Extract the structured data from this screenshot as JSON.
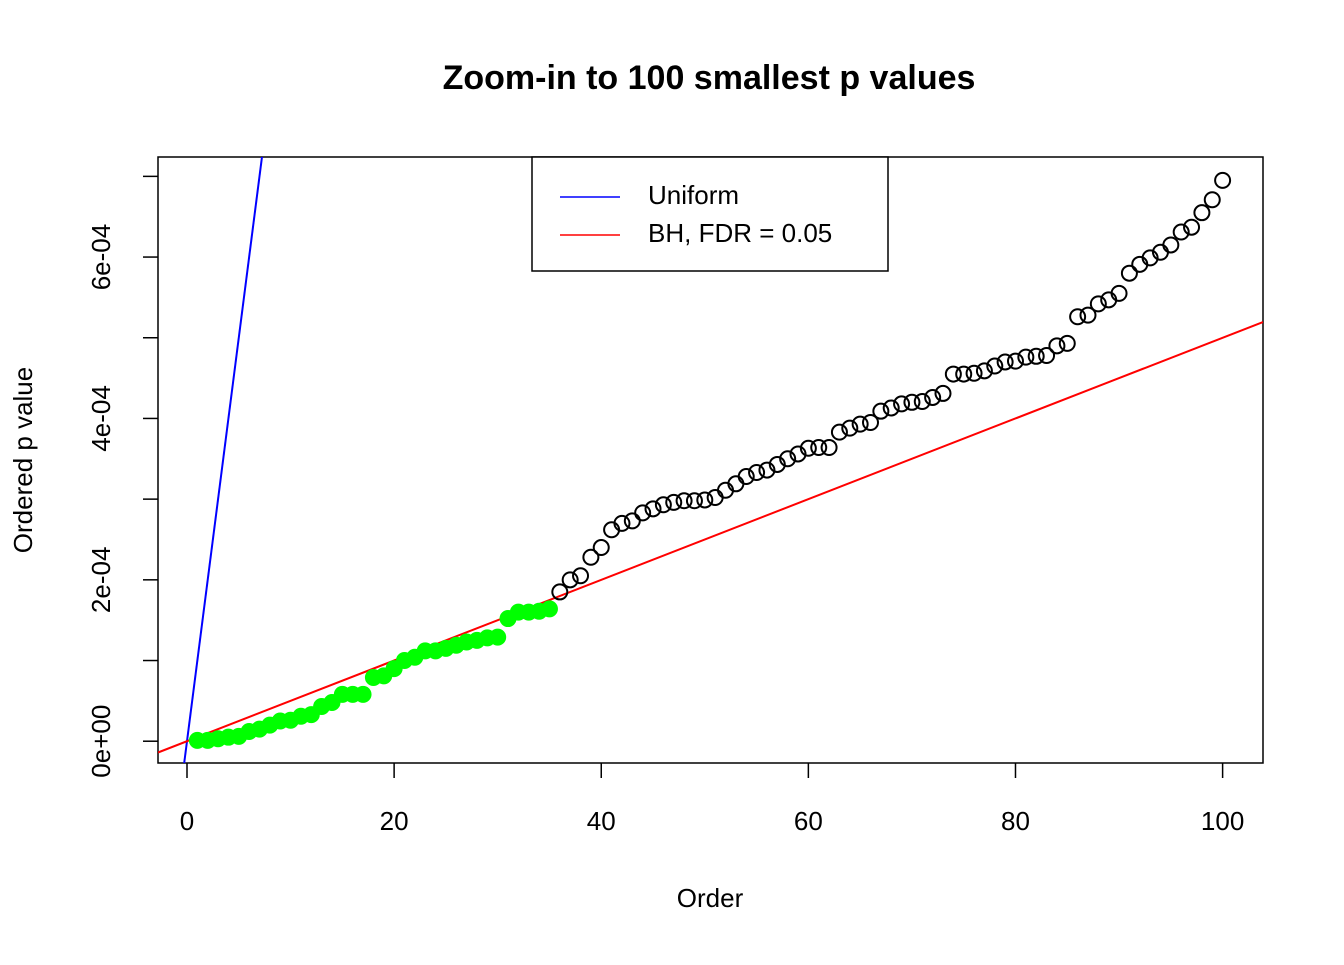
{
  "chart_data": {
    "type": "scatter",
    "title": "Zoom-in to 100 smallest p values",
    "xlabel": "Order",
    "ylabel": "Ordered p value",
    "xlim": [
      -2.8,
      103.9
    ],
    "ylim": [
      -2.7e-05,
      0.000724
    ],
    "xticks": [
      0,
      20,
      40,
      60,
      80,
      100
    ],
    "yticks": [
      {
        "value": 0,
        "label": "0e+00"
      },
      {
        "value": 0.0002,
        "label": "2e-04"
      },
      {
        "value": 0.0004,
        "label": "4e-04"
      },
      {
        "value": 0.0006,
        "label": "6e-04"
      }
    ],
    "yticks_minor": [
      0.0001,
      0.0003,
      0.0005,
      0.0007
    ],
    "lines": [
      {
        "name": "Uniform",
        "color": "#0000ff",
        "slope": 0.0001
      },
      {
        "name": "BH, FDR = 0.05",
        "color": "#ff0000",
        "slope": 5e-06
      }
    ],
    "series": [
      {
        "color": "#00ff00",
        "filled": true,
        "x": [
          1,
          2,
          3,
          4,
          5,
          6,
          7,
          8,
          9,
          10,
          11,
          12,
          13,
          14,
          15,
          16,
          17,
          18,
          19,
          20,
          21,
          22,
          23,
          24,
          25,
          26,
          27,
          28,
          29,
          30,
          31,
          32,
          33,
          34,
          35
        ],
        "values": [
          1e-06,
          1e-06,
          3e-06,
          5e-06,
          6e-06,
          1.2e-05,
          1.5e-05,
          2e-05,
          2.5e-05,
          2.6e-05,
          3.1e-05,
          3.3e-05,
          4.3e-05,
          4.8e-05,
          5.8e-05,
          5.8e-05,
          5.8e-05,
          7.9e-05,
          8.1e-05,
          9e-05,
          0.0001,
          0.000104,
          0.000112,
          0.000112,
          0.000115,
          0.000119,
          0.000123,
          0.000125,
          0.000128,
          0.000129,
          0.000152,
          0.00016,
          0.00016,
          0.000161,
          0.000164
        ]
      },
      {
        "color": "#000000",
        "filled": false,
        "x": [
          36,
          37,
          38,
          39,
          40,
          41,
          42,
          43,
          44,
          45,
          46,
          47,
          48,
          49,
          50,
          51,
          52,
          53,
          54,
          55,
          56,
          57,
          58,
          59,
          60,
          61,
          62,
          63,
          64,
          65,
          66,
          67,
          68,
          69,
          70,
          71,
          72,
          73,
          74,
          75,
          76,
          77,
          78,
          79,
          80,
          81,
          82,
          83,
          84,
          85,
          86,
          87,
          88,
          89,
          90,
          91,
          92,
          93,
          94,
          95,
          96,
          97,
          98,
          99,
          100
        ],
        "values": [
          0.000185,
          0.0002,
          0.000205,
          0.000228,
          0.00024,
          0.000262,
          0.00027,
          0.000273,
          0.000283,
          0.000288,
          0.000293,
          0.000296,
          0.000298,
          0.000298,
          0.000299,
          0.000302,
          0.000311,
          0.000319,
          0.000328,
          0.000333,
          0.000336,
          0.000343,
          0.00035,
          0.000356,
          0.000363,
          0.000364,
          0.000364,
          0.000383,
          0.000388,
          0.000393,
          0.000395,
          0.000409,
          0.000413,
          0.000418,
          0.00042,
          0.000421,
          0.000426,
          0.000431,
          0.000455,
          0.000455,
          0.000456,
          0.000459,
          0.000465,
          0.00047,
          0.000471,
          0.000476,
          0.000477,
          0.000478,
          0.00049,
          0.000493,
          0.000526,
          0.000528,
          0.000542,
          0.000547,
          0.000555,
          0.00058,
          0.000591,
          0.000599,
          0.000606,
          0.000615,
          0.000631,
          0.000637,
          0.000655,
          0.000671,
          0.000695
        ]
      }
    ]
  }
}
